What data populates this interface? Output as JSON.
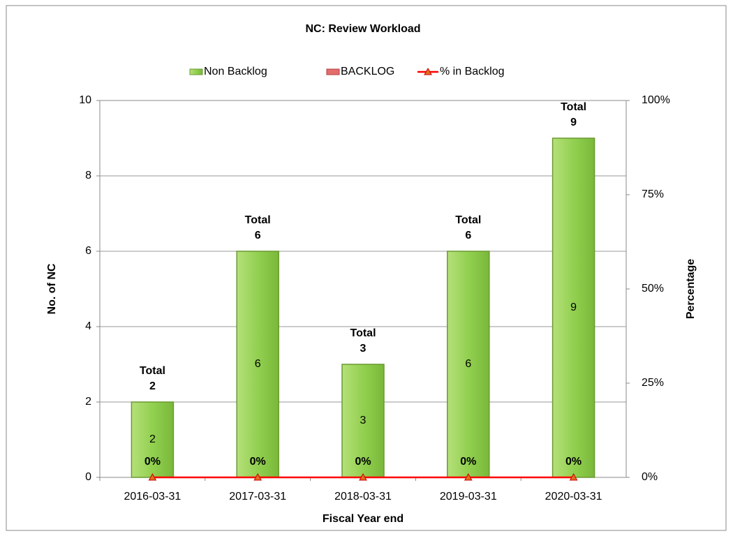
{
  "chart_data": {
    "type": "bar",
    "stacked": true,
    "title": "NC:  Review Workload",
    "xlabel": "Fiscal Year end",
    "ylabel": "No. of NC",
    "y2label": "Percentage",
    "categories": [
      "2016-03-31",
      "2017-03-31",
      "2018-03-31",
      "2019-03-31",
      "2020-03-31"
    ],
    "series": [
      {
        "name": "Non Backlog",
        "color": "#92d050",
        "values": [
          2,
          6,
          3,
          6,
          9
        ]
      },
      {
        "name": "BACKLOG",
        "color": "#e46c6c",
        "values": [
          0,
          0,
          0,
          0,
          0
        ]
      },
      {
        "name": "% in Backlog",
        "color": "#ff0000",
        "type": "line",
        "axis": "y2",
        "values": [
          0,
          0,
          0,
          0,
          0
        ],
        "value_labels": [
          "0%",
          "0%",
          "0%",
          "0%",
          "0%"
        ]
      }
    ],
    "total_label": "Total",
    "totals": [
      2,
      6,
      3,
      6,
      9
    ],
    "ylim": [
      0,
      10
    ],
    "yticks": [
      0,
      2,
      4,
      6,
      8,
      10
    ],
    "y2lim": [
      0,
      100
    ],
    "y2ticks": [
      {
        "value": 0,
        "label": "0%"
      },
      {
        "value": 25,
        "label": "25%"
      },
      {
        "value": 50,
        "label": "50%"
      },
      {
        "value": 75,
        "label": "75%"
      },
      {
        "value": 100,
        "label": "100%"
      }
    ],
    "grid": true,
    "legend": "top"
  }
}
